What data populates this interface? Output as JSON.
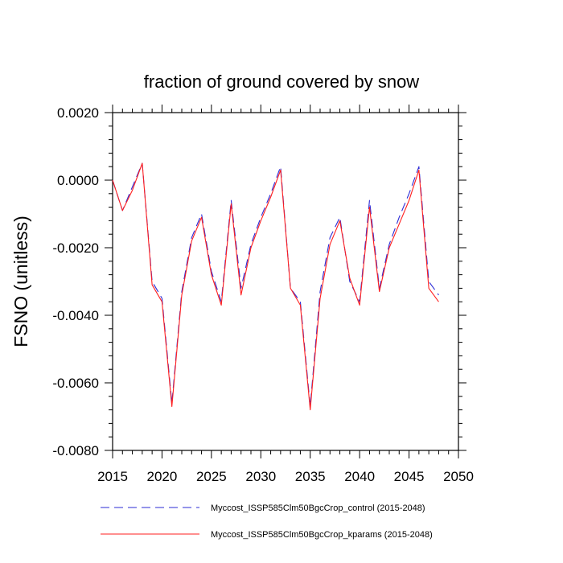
{
  "chart_data": {
    "type": "line",
    "title": "fraction of ground covered by snow",
    "xlabel": "",
    "ylabel": "FSNO  (unitless)",
    "xlim": [
      2015,
      2050
    ],
    "ylim": [
      -0.008,
      0.002
    ],
    "x_ticks": [
      2015,
      2020,
      2025,
      2030,
      2035,
      2040,
      2045,
      2050
    ],
    "x_tick_labels": [
      "2015",
      "2020",
      "2025",
      "2030",
      "2035",
      "2040",
      "2045",
      "2050"
    ],
    "y_ticks": [
      0.002,
      0.0,
      -0.002,
      -0.004,
      -0.006,
      -0.008
    ],
    "y_tick_labels": [
      "0.0020",
      "0.0000",
      "-0.0020",
      "-0.0040",
      "-0.0060",
      "-0.0080"
    ],
    "x": [
      2015,
      2016,
      2017,
      2018,
      2019,
      2020,
      2021,
      2022,
      2023,
      2024,
      2025,
      2026,
      2027,
      2028,
      2029,
      2030,
      2031,
      2032,
      2033,
      2034,
      2035,
      2036,
      2037,
      2038,
      2039,
      2040,
      2041,
      2042,
      2043,
      2044,
      2045,
      2046,
      2047,
      2048
    ],
    "series": [
      {
        "name": "Myccost_ISSP585Clm50BgcCrop_control (2015-2048)",
        "color": "#2b2bd6",
        "dash": "dashed",
        "values": [
          0.0,
          -0.0009,
          -0.0002,
          0.0005,
          -0.003,
          -0.0035,
          -0.0066,
          -0.0033,
          -0.0017,
          -0.001,
          -0.0027,
          -0.0036,
          -0.0006,
          -0.0032,
          -0.0019,
          -0.0011,
          -0.0004,
          0.0004,
          -0.0032,
          -0.0036,
          -0.0067,
          -0.0033,
          -0.0017,
          -0.0011,
          -0.003,
          -0.0036,
          -0.0006,
          -0.0032,
          -0.0019,
          -0.0011,
          -0.0004,
          0.0004,
          -0.003,
          -0.0034
        ]
      },
      {
        "name": "Myccost_ISSP585Clm50BgcCrop_kparams (2015-2048)",
        "color": "#ff1f1f",
        "dash": "solid",
        "values": [
          0.0,
          -0.0009,
          -0.0003,
          0.0005,
          -0.0031,
          -0.0036,
          -0.0067,
          -0.0034,
          -0.0018,
          -0.0011,
          -0.0028,
          -0.0037,
          -0.0007,
          -0.0034,
          -0.002,
          -0.0012,
          -0.0005,
          0.0003,
          -0.0032,
          -0.0037,
          -0.0068,
          -0.0035,
          -0.0019,
          -0.0012,
          -0.0029,
          -0.0037,
          -0.0008,
          -0.0033,
          -0.002,
          -0.0013,
          -0.0006,
          0.0003,
          -0.0032,
          -0.0036
        ]
      }
    ],
    "legend": "bottom",
    "grid": false
  }
}
